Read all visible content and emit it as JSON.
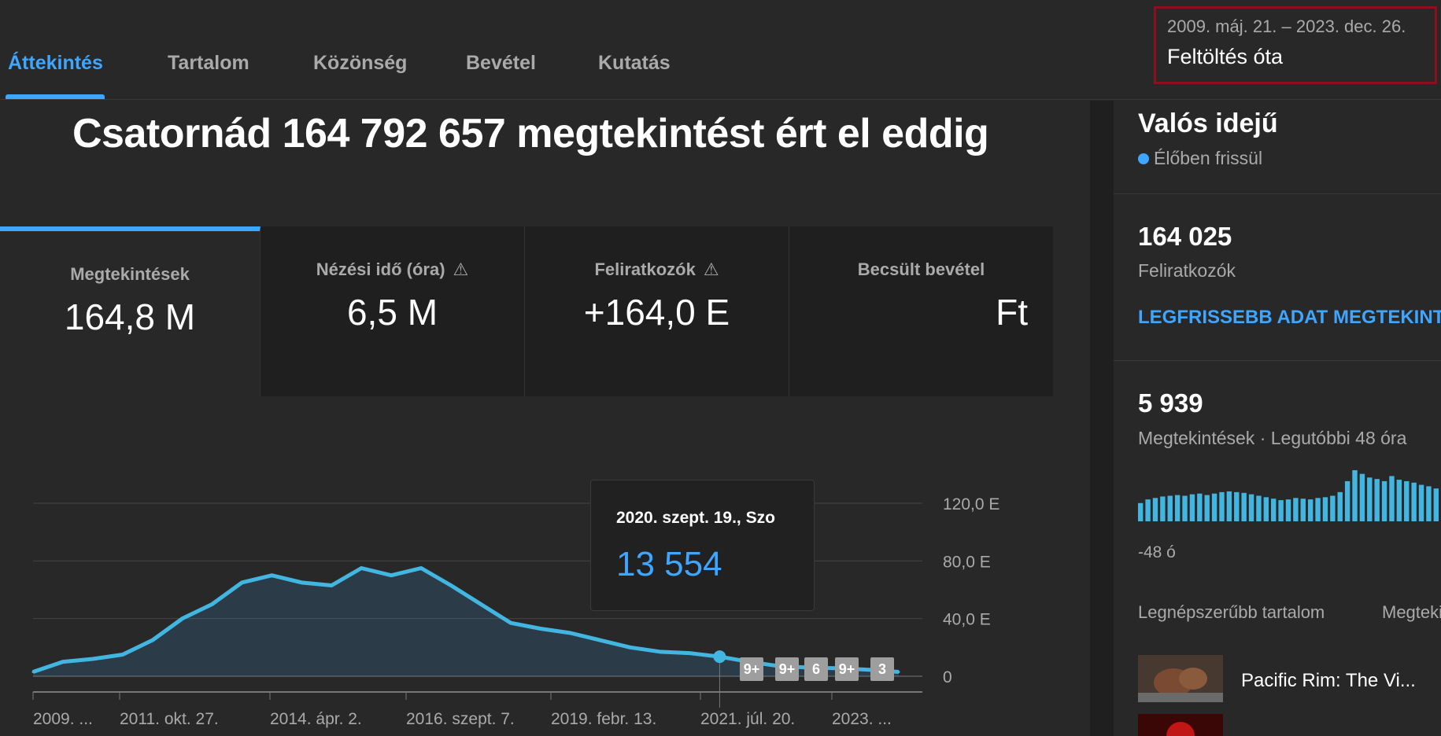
{
  "tabs": [
    {
      "label": "Áttekintés"
    },
    {
      "label": "Tartalom"
    },
    {
      "label": "Közönség"
    },
    {
      "label": "Bevétel"
    },
    {
      "label": "Kutatás"
    }
  ],
  "date_selector": {
    "range": "2009. máj. 21. – 2023. dec. 26.",
    "label": "Feltöltés óta"
  },
  "headline": "Csatornád 164 792 657 megtekintést ért el eddig",
  "metrics": [
    {
      "label": "Megtekintések",
      "value": "164,8 M",
      "warning": false
    },
    {
      "label": "Nézési idő (óra)",
      "value": "6,5 M",
      "warning": true
    },
    {
      "label": "Feliratkozók",
      "value": "+164,0 E",
      "warning": true
    },
    {
      "label": "Becsült bevétel",
      "value": "Ft",
      "warning": false
    }
  ],
  "chart_data": {
    "type": "area",
    "y_tick_labels": [
      "120,0 E",
      "80,0 E",
      "40,0 E",
      "0"
    ],
    "ylim": [
      0,
      120000
    ],
    "x_tick_labels": [
      "2009. ...",
      "2011. okt. 27.",
      "2014. ápr. 2.",
      "2016. szept. 7.",
      "2019. febr. 13.",
      "2021. júl. 20.",
      "2023. ..."
    ],
    "x": [
      "2009-05",
      "2009-11",
      "2010-05",
      "2010-11",
      "2011-05",
      "2011-11",
      "2012-05",
      "2012-11",
      "2013-05",
      "2013-11",
      "2014-05",
      "2014-11",
      "2015-05",
      "2015-11",
      "2016-05",
      "2016-11",
      "2017-05",
      "2017-11",
      "2018-05",
      "2018-11",
      "2019-05",
      "2019-11",
      "2020-05",
      "2020-09",
      "2021-03",
      "2021-09",
      "2022-03",
      "2022-09",
      "2023-03",
      "2023-12"
    ],
    "values": [
      3000,
      10000,
      12000,
      15000,
      25000,
      40000,
      50000,
      65000,
      70000,
      65000,
      63000,
      75000,
      70000,
      75000,
      63000,
      50000,
      37000,
      33000,
      30000,
      25000,
      20000,
      17000,
      16000,
      13554,
      10000,
      7000,
      6000,
      5500,
      4500,
      3000
    ],
    "tooltip": {
      "date": "2020. szept. 19., Szo",
      "value": "13 554"
    },
    "annotation_badges": [
      "9+",
      "9+",
      "6",
      "9+",
      "3"
    ],
    "color": "#3ea6ff",
    "grid": true
  },
  "realtime": {
    "title": "Valós idejű",
    "live_label": "Élőben frissül",
    "subscribers_value": "164 025",
    "subscribers_label": "Feliratkozók",
    "latest_link": "LEGFRISSEBB ADAT MEGTEKINTÉSE",
    "views_value": "5 939",
    "views_label": "Megtekintések · Legutóbbi 48 óra",
    "mini_chart_start_label": "-48 ó",
    "mini_chart_values": [
      25,
      30,
      32,
      34,
      35,
      36,
      35,
      37,
      38,
      36,
      38,
      40,
      41,
      40,
      39,
      37,
      35,
      33,
      31,
      29,
      30,
      32,
      31,
      30,
      32,
      33,
      35,
      40,
      55,
      70,
      65,
      60,
      58,
      55,
      62,
      57,
      55,
      53,
      50,
      48,
      45
    ]
  },
  "popular": {
    "tabs": [
      "Legnépszerűbb tartalom",
      "Megtekintések"
    ],
    "video_title": "Pacific Rim: The Vi..."
  }
}
